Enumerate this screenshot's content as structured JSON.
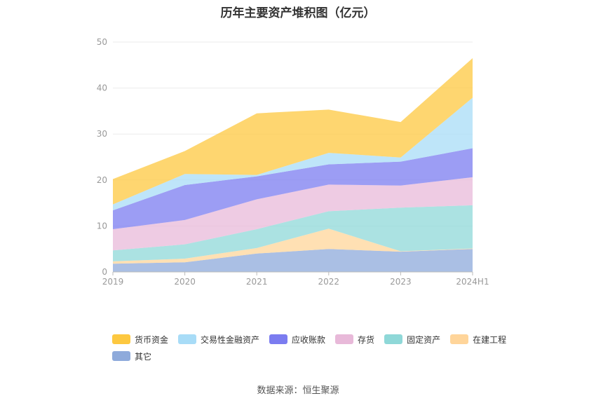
{
  "title": "历年主要资产堆积图（亿元）",
  "source": "数据来源：恒生聚源",
  "chart_data": {
    "type": "area",
    "stacked": true,
    "title": "历年主要资产堆积图（亿元）",
    "xlabel": "",
    "ylabel": "",
    "categories": [
      "2019",
      "2020",
      "2021",
      "2022",
      "2023",
      "2024H1"
    ],
    "ylim": [
      0,
      50
    ],
    "yticks": [
      0,
      10,
      20,
      30,
      40,
      50
    ],
    "grid": true,
    "legend_position": "bottom",
    "series": [
      {
        "name": "其它",
        "color": "#8eaadb",
        "values": [
          1.8,
          2.1,
          4.0,
          5.0,
          4.4,
          5.0
        ]
      },
      {
        "name": "在建工程",
        "color": "#ffd59a",
        "values": [
          0.5,
          0.8,
          1.2,
          4.4,
          0.1,
          0.1
        ]
      },
      {
        "name": "固定资产",
        "color": "#8fd8d8",
        "values": [
          2.4,
          3.1,
          4.1,
          3.8,
          9.5,
          9.4
        ]
      },
      {
        "name": "存货",
        "color": "#e8b9d9",
        "values": [
          4.6,
          5.3,
          6.5,
          5.8,
          4.8,
          6.1
        ]
      },
      {
        "name": "应收账款",
        "color": "#7b7cf0",
        "values": [
          4.1,
          7.6,
          5.0,
          4.4,
          5.2,
          6.3
        ]
      },
      {
        "name": "交易性金融资产",
        "color": "#a8dcf7",
        "values": [
          1.3,
          2.4,
          0.3,
          2.5,
          0.9,
          11.0
        ]
      },
      {
        "name": "货币资金",
        "color": "#fdc840",
        "values": [
          5.5,
          5.0,
          13.4,
          9.4,
          7.7,
          8.6
        ]
      }
    ],
    "legend_order": [
      "货币资金",
      "交易性金融资产",
      "应收账款",
      "存货",
      "固定资产",
      "在建工程",
      "其它"
    ]
  }
}
